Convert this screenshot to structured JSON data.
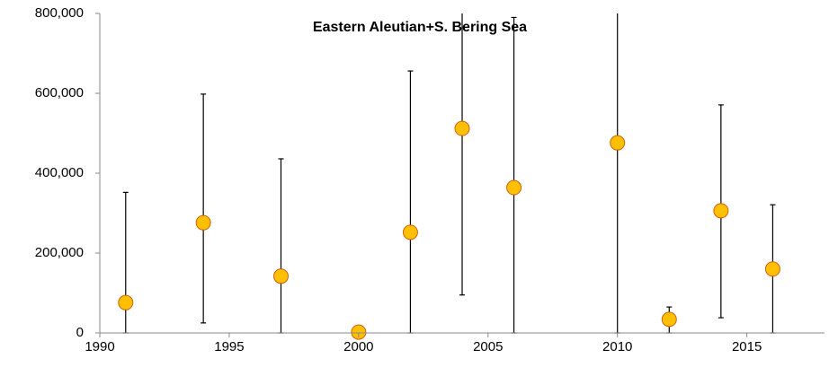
{
  "chart_data": {
    "type": "scatter",
    "title": "Eastern Aleutian+S. Bering Sea",
    "x": [
      1991,
      1994,
      1997,
      2000,
      2002,
      2004,
      2006,
      2010,
      2012,
      2014,
      2016
    ],
    "values": [
      76000,
      276000,
      142000,
      2000,
      252000,
      512000,
      364000,
      476000,
      34000,
      306000,
      160000
    ],
    "low": [
      0,
      25000,
      0,
      null,
      0,
      95000,
      0,
      0,
      0,
      38000,
      0
    ],
    "high": [
      352000,
      598000,
      436000,
      null,
      656000,
      929000,
      790000,
      950000,
      65000,
      571000,
      321000
    ],
    "color": "#ffc000",
    "edge_color": "#d06010",
    "xlim": [
      1990,
      2018
    ],
    "xticks": [
      1990,
      1995,
      2000,
      2005,
      2010,
      2015
    ],
    "ylim": [
      0,
      800000
    ],
    "yticks": [
      {
        "value": 0,
        "label": "0"
      },
      {
        "value": 200000,
        "label": "200,000"
      },
      {
        "value": 400000,
        "label": "400,000"
      },
      {
        "value": 600000,
        "label": "600,000"
      },
      {
        "value": 800000,
        "label": "800,000"
      }
    ]
  }
}
